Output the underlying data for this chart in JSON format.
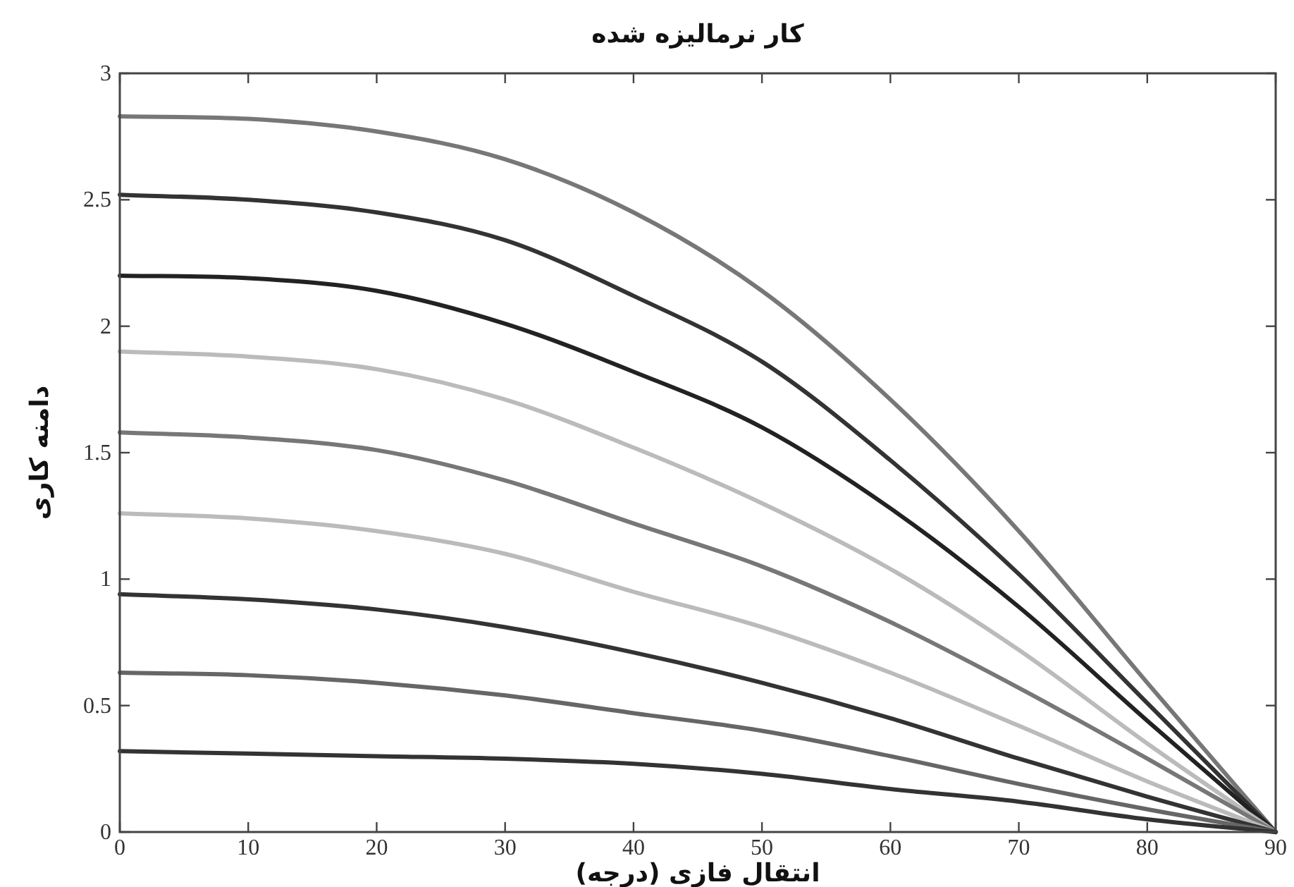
{
  "chart_data": {
    "type": "line",
    "title": "کار نرمالیزه شده",
    "xlabel": "انتقال فازی (درجه)",
    "ylabel": "دامنه کاری",
    "x": [
      0,
      10,
      20,
      30,
      40,
      50,
      60,
      70,
      80,
      90
    ],
    "xlim": [
      0,
      90
    ],
    "ylim": [
      0,
      3
    ],
    "xticks": [
      0,
      10,
      20,
      30,
      40,
      50,
      60,
      70,
      80,
      90
    ],
    "yticks": [
      0,
      0.5,
      1,
      1.5,
      2,
      2.5,
      3
    ],
    "grid": false,
    "marker": "none",
    "line_style": "solid",
    "series": [
      {
        "color": "#777777",
        "values": [
          2.83,
          2.82,
          2.77,
          2.66,
          2.45,
          2.14,
          1.71,
          1.19,
          0.59,
          0
        ]
      },
      {
        "color": "#333333",
        "values": [
          2.52,
          2.5,
          2.45,
          2.34,
          2.12,
          1.86,
          1.47,
          1.02,
          0.51,
          0
        ]
      },
      {
        "color": "#222222",
        "values": [
          2.2,
          2.19,
          2.14,
          2.01,
          1.82,
          1.6,
          1.28,
          0.89,
          0.44,
          0
        ]
      },
      {
        "color": "#bbbbbb",
        "values": [
          1.9,
          1.88,
          1.83,
          1.71,
          1.52,
          1.3,
          1.04,
          0.72,
          0.35,
          0
        ]
      },
      {
        "color": "#777777",
        "values": [
          1.58,
          1.56,
          1.51,
          1.39,
          1.22,
          1.05,
          0.83,
          0.57,
          0.29,
          0
        ]
      },
      {
        "color": "#bbbbbb",
        "values": [
          1.26,
          1.24,
          1.19,
          1.1,
          0.95,
          0.81,
          0.63,
          0.42,
          0.2,
          0
        ]
      },
      {
        "color": "#333333",
        "values": [
          0.94,
          0.92,
          0.88,
          0.81,
          0.71,
          0.59,
          0.45,
          0.29,
          0.14,
          0
        ]
      },
      {
        "color": "#666666",
        "values": [
          0.63,
          0.62,
          0.59,
          0.54,
          0.47,
          0.4,
          0.3,
          0.19,
          0.09,
          0
        ]
      },
      {
        "color": "#333333",
        "values": [
          0.32,
          0.31,
          0.3,
          0.29,
          0.27,
          0.23,
          0.17,
          0.12,
          0.05,
          0
        ]
      }
    ]
  }
}
